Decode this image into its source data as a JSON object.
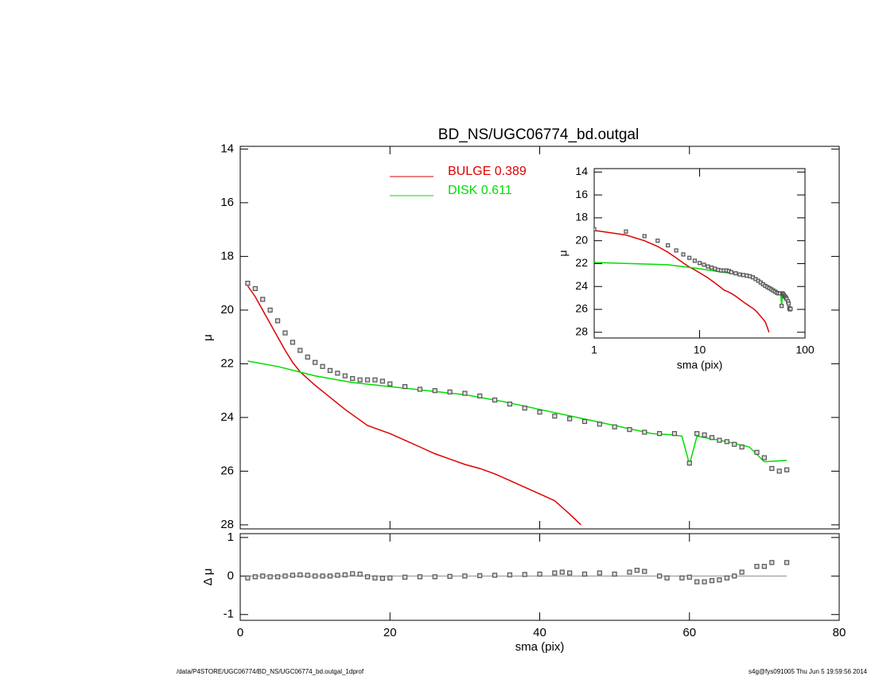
{
  "chart_data": [
    {
      "type": "line",
      "title": "BD_NS/UGC06774_bd.outgal",
      "ylabel": "μ",
      "y_inverted": true,
      "xtick_labels": false,
      "xlim": [
        0,
        80
      ],
      "xticks": [
        0,
        20,
        40,
        60,
        80
      ],
      "ylim": [
        13.9,
        28.15
      ],
      "yticks": [
        14,
        16,
        18,
        20,
        22,
        24,
        26,
        28
      ],
      "series": [
        {
          "marker": "square",
          "color": "#555555",
          "x": [
            1,
            2,
            3,
            4,
            5,
            6,
            7,
            8,
            9,
            10,
            11,
            12,
            13,
            14,
            15,
            16,
            17,
            18,
            19,
            20,
            22,
            24,
            26,
            28,
            30,
            32,
            34,
            36,
            38,
            40,
            42,
            44,
            46,
            48,
            50,
            52,
            54,
            56,
            58,
            60,
            61,
            62,
            63,
            64,
            65,
            66,
            67,
            69,
            70,
            71,
            72,
            73
          ],
          "values": [
            19.0,
            19.2,
            19.6,
            20.0,
            20.4,
            20.85,
            21.2,
            21.5,
            21.75,
            21.95,
            22.1,
            22.25,
            22.35,
            22.45,
            22.55,
            22.6,
            22.6,
            22.6,
            22.65,
            22.75,
            22.85,
            22.95,
            23.0,
            23.05,
            23.1,
            23.2,
            23.35,
            23.5,
            23.65,
            23.8,
            23.95,
            24.05,
            24.15,
            24.25,
            24.35,
            24.45,
            24.55,
            24.6,
            24.6,
            25.7,
            24.6,
            24.65,
            24.75,
            24.85,
            24.9,
            25.0,
            25.1,
            25.3,
            25.5,
            25.9,
            26.0,
            25.95
          ]
        },
        {
          "name": "BULGE  0.389",
          "color": "#dd0000",
          "x": [
            1,
            2,
            3,
            4,
            5,
            6,
            7,
            8,
            9,
            10,
            12,
            14,
            16,
            17,
            18,
            20,
            22,
            24,
            26,
            28,
            30,
            32,
            34,
            36,
            38,
            40,
            42,
            43,
            44,
            45.5
          ],
          "values": [
            19.1,
            19.5,
            20.0,
            20.5,
            21.0,
            21.5,
            21.95,
            22.3,
            22.55,
            22.8,
            23.25,
            23.7,
            24.1,
            24.3,
            24.4,
            24.6,
            24.85,
            25.1,
            25.35,
            25.55,
            25.75,
            25.9,
            26.1,
            26.35,
            26.6,
            26.85,
            27.1,
            27.35,
            27.6,
            28.0
          ]
        },
        {
          "name": "DISK  0.611",
          "color": "#00dd00",
          "x": [
            1,
            5,
            10,
            15,
            20,
            25,
            30,
            35,
            40,
            45,
            50,
            55,
            58,
            59,
            60,
            61,
            65,
            68,
            70,
            73
          ],
          "values": [
            21.9,
            22.1,
            22.45,
            22.7,
            22.85,
            23.0,
            23.15,
            23.4,
            23.7,
            24.0,
            24.3,
            24.6,
            24.65,
            24.7,
            25.75,
            24.7,
            24.9,
            25.1,
            25.65,
            25.6
          ]
        }
      ]
    },
    {
      "type": "line",
      "xlabel": "sma (pix)",
      "ylabel": "Δ μ",
      "xlim": [
        0,
        80
      ],
      "xticks": [
        0,
        20,
        40,
        60,
        80
      ],
      "ylim": [
        -1.15,
        1.1
      ],
      "yticks": [
        -1,
        0,
        1
      ],
      "series": [
        {
          "marker": "square",
          "color": "#555555",
          "x": [
            1,
            2,
            3,
            4,
            5,
            6,
            7,
            8,
            9,
            10,
            11,
            12,
            13,
            14,
            15,
            16,
            17,
            18,
            19,
            20,
            22,
            24,
            26,
            28,
            30,
            32,
            34,
            36,
            38,
            40,
            42,
            43,
            44,
            46,
            48,
            50,
            52,
            53,
            54,
            56,
            57,
            59,
            60,
            61,
            62,
            63,
            64,
            65,
            66,
            67,
            69,
            70,
            71,
            73
          ],
          "values": [
            -0.05,
            -0.02,
            0,
            -0.02,
            -0.02,
            0,
            0.02,
            0.03,
            0.02,
            0,
            0,
            0,
            0.02,
            0.03,
            0.06,
            0.05,
            -0.02,
            -0.05,
            -0.06,
            -0.05,
            -0.03,
            -0.02,
            -0.02,
            -0.01,
            0,
            0.01,
            0.02,
            0.03,
            0.04,
            0.05,
            0.08,
            0.1,
            0.08,
            0.05,
            0.08,
            0.05,
            0.1,
            0.15,
            0.12,
            0,
            -0.05,
            -0.05,
            -0.03,
            -0.15,
            -0.15,
            -0.12,
            -0.1,
            -0.05,
            0,
            0.1,
            0.25,
            0.25,
            0.35,
            0.35
          ]
        }
      ]
    },
    {
      "type": "line",
      "xlabel": "sma (pix)",
      "ylabel": "μ",
      "y_inverted": true,
      "xlog": true,
      "xlim": [
        1,
        100
      ],
      "xticks": [
        1,
        10,
        100
      ],
      "ylim": [
        13.7,
        28.5
      ],
      "yticks": [
        14,
        16,
        18,
        20,
        22,
        24,
        26,
        28
      ]
    }
  ],
  "footer": {
    "left": "/data/P4STORE/UGC06774/BD_NS/UGC06774_bd.outgal_1dprof",
    "right": "s4g@fys091005  Thu Jun  5 19:59:56 2014"
  }
}
